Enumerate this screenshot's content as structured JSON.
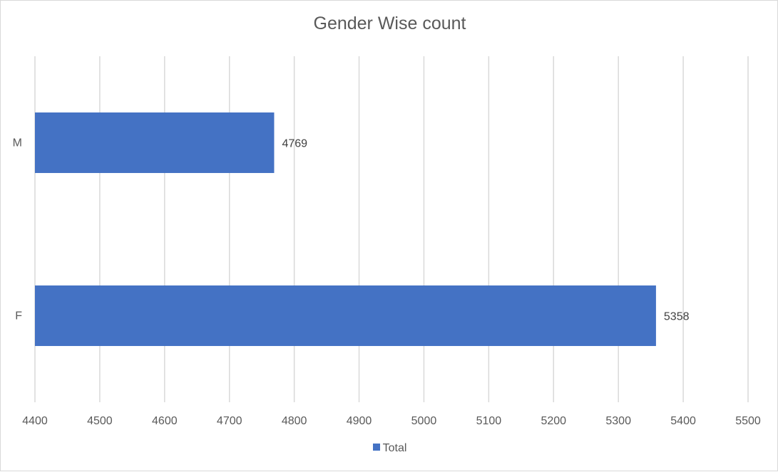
{
  "chart_data": {
    "type": "bar",
    "orientation": "horizontal",
    "title": "Gender Wise count",
    "xlabel": "",
    "ylabel": "",
    "categories": [
      "M",
      "F"
    ],
    "series": [
      {
        "name": "Total",
        "values": [
          4769,
          5358
        ],
        "color": "#4472c4"
      }
    ],
    "xlim": [
      4400,
      5500
    ],
    "xticks": [
      "4400",
      "4500",
      "4600",
      "4700",
      "4800",
      "4900",
      "5000",
      "5100",
      "5200",
      "5300",
      "5400",
      "5500"
    ],
    "data_labels": [
      "4769",
      "5358"
    ],
    "grid": true,
    "legend_position": "bottom"
  }
}
